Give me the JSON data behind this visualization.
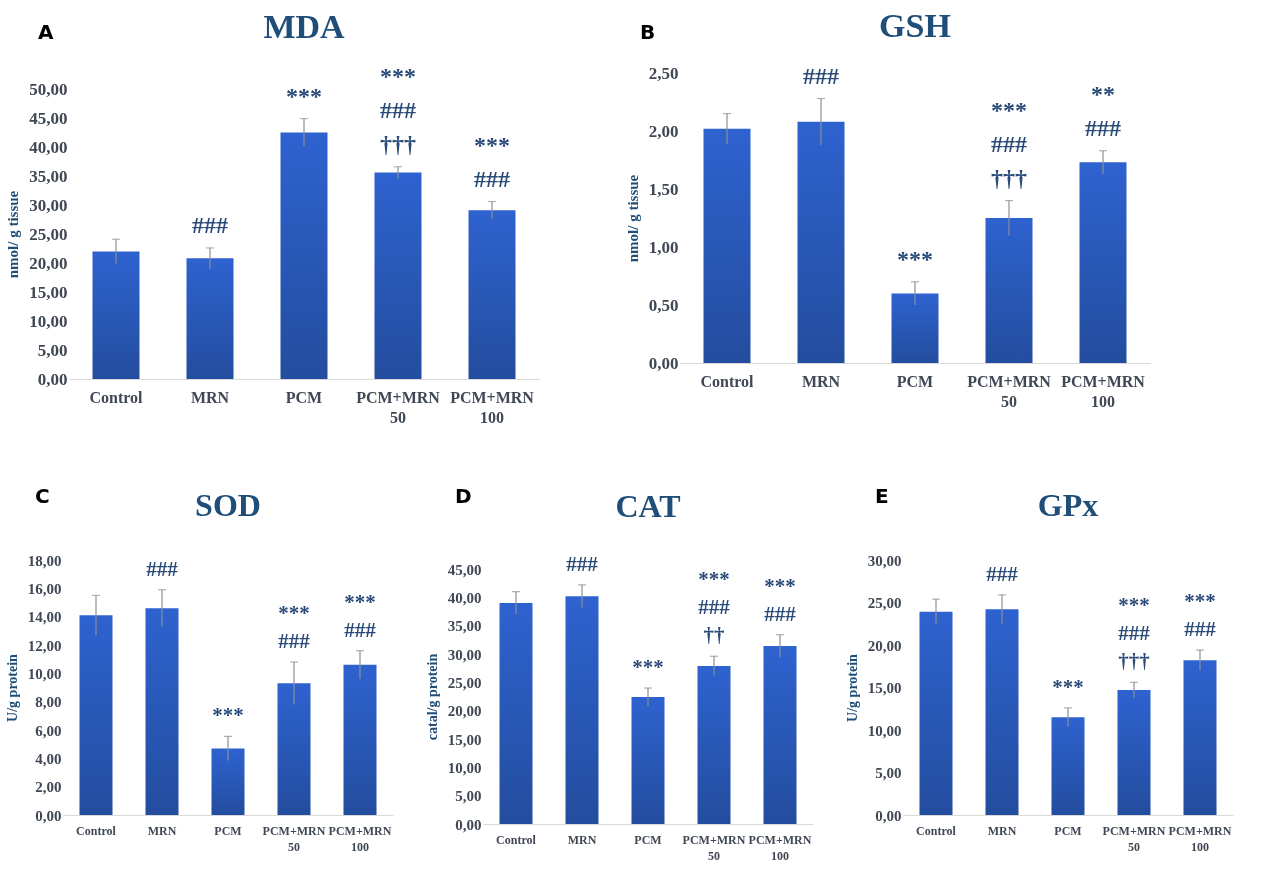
{
  "chart_data": [
    {
      "type": "bar",
      "title": "MDA",
      "ylabel": "nmol/ g tissue",
      "categories": [
        "Control",
        "MRN",
        "PCM",
        "PCM+MRN 50",
        "PCM+MRN 100"
      ],
      "values": [
        22.0,
        20.8,
        42.5,
        35.6,
        29.1
      ],
      "errors": [
        2.1,
        1.8,
        2.4,
        1.0,
        1.5
      ],
      "color": "#2e62cf",
      "ylim": [
        0,
        50
      ],
      "yticks": [
        {
          "value": 0,
          "label": "0,00"
        },
        {
          "value": 5,
          "label": "5,00"
        },
        {
          "value": 10,
          "label": "10,00"
        },
        {
          "value": 15,
          "label": "15,00"
        },
        {
          "value": 20,
          "label": "20,00"
        },
        {
          "value": 25,
          "label": "25,00"
        },
        {
          "value": 30,
          "label": "30,00"
        },
        {
          "value": 35,
          "label": "35,00"
        },
        {
          "value": 40,
          "label": "40,00"
        },
        {
          "value": 45,
          "label": "45,00"
        },
        {
          "value": 50,
          "label": "50,00"
        }
      ],
      "grid": false,
      "annotations": [
        "A",
        {
          "text": "###",
          "x": "MRN",
          "y": 20.8
        },
        {
          "text": "***",
          "x": "PCM",
          "y": 42.5
        },
        {
          "text": "***\n###\n†††",
          "x": "PCM+MRN 50",
          "y": 35.6
        },
        {
          "text": "***\n###",
          "x": "PCM+MRN 100",
          "y": 29.1
        }
      ]
    },
    {
      "type": "bar",
      "title": "GSH",
      "ylabel": "nmol/ g tissue",
      "categories": [
        "Control",
        "MRN",
        "PCM",
        "PCM+MRN 50",
        "PCM+MRN 100"
      ],
      "values": [
        2.02,
        2.08,
        0.6,
        1.25,
        1.73
      ],
      "errors": [
        0.13,
        0.2,
        0.1,
        0.15,
        0.1
      ],
      "color": "#2e62cf",
      "ylim": [
        0,
        2.5
      ],
      "yticks": [
        {
          "value": 0,
          "label": "0,00"
        },
        {
          "value": 0.5,
          "label": "0,50"
        },
        {
          "value": 1,
          "label": "1,00"
        },
        {
          "value": 1.5,
          "label": "1,50"
        },
        {
          "value": 2,
          "label": "2,00"
        },
        {
          "value": 2.5,
          "label": "2,50"
        }
      ],
      "grid": false,
      "annotations": [
        "B",
        {
          "text": "###",
          "x": "MRN",
          "y": 2.08
        },
        {
          "text": "***",
          "x": "PCM",
          "y": 0.6
        },
        {
          "text": "***\n###\n†††",
          "x": "PCM+MRN 50",
          "y": 1.25
        },
        {
          "text": "**\n###",
          "x": "PCM+MRN 100",
          "y": 1.73
        }
      ]
    },
    {
      "type": "bar",
      "title": "SOD",
      "ylabel": "U/g protein",
      "categories": [
        "Control",
        "MRN",
        "PCM",
        "PCM+MRN 50",
        "PCM+MRN 100"
      ],
      "values": [
        14.1,
        14.6,
        4.7,
        9.3,
        10.6
      ],
      "errors": [
        1.4,
        1.3,
        0.85,
        1.5,
        1.0
      ],
      "color": "#2e62cf",
      "ylim": [
        0,
        18
      ],
      "yticks": [
        {
          "value": 0,
          "label": "0,00"
        },
        {
          "value": 2,
          "label": "2,00"
        },
        {
          "value": 4,
          "label": "4,00"
        },
        {
          "value": 6,
          "label": "6,00"
        },
        {
          "value": 8,
          "label": "8,00"
        },
        {
          "value": 10,
          "label": "10,00"
        },
        {
          "value": 12,
          "label": "12,00"
        },
        {
          "value": 14,
          "label": "14,00"
        },
        {
          "value": 16,
          "label": "16,00"
        },
        {
          "value": 18,
          "label": "18,00"
        }
      ],
      "grid": false,
      "annotations": [
        "C",
        {
          "text": "###",
          "x": "MRN",
          "y": 14.6
        },
        {
          "text": "***",
          "x": "PCM",
          "y": 4.7
        },
        {
          "text": "***\n###",
          "x": "PCM+MRN 50",
          "y": 9.3
        },
        {
          "text": "***\n###",
          "x": "PCM+MRN 100",
          "y": 10.6
        }
      ]
    },
    {
      "type": "bar",
      "title": "CAT",
      "ylabel": "catal/g protein",
      "categories": [
        "Control",
        "MRN",
        "PCM",
        "PCM+MRN 50",
        "PCM+MRN 100"
      ],
      "values": [
        39.0,
        40.2,
        22.4,
        27.9,
        31.4
      ],
      "errors": [
        2.0,
        2.0,
        1.6,
        1.7,
        2.0
      ],
      "color": "#2e62cf",
      "ylim": [
        0,
        45
      ],
      "yticks": [
        {
          "value": 0,
          "label": "0,00"
        },
        {
          "value": 5,
          "label": "5,00"
        },
        {
          "value": 10,
          "label": "10,00"
        },
        {
          "value": 15,
          "label": "15,00"
        },
        {
          "value": 20,
          "label": "20,00"
        },
        {
          "value": 25,
          "label": "25,00"
        },
        {
          "value": 30,
          "label": "30,00"
        },
        {
          "value": 35,
          "label": "35,00"
        },
        {
          "value": 40,
          "label": "40,00"
        },
        {
          "value": 45,
          "label": "45,00"
        }
      ],
      "grid": false,
      "annotations": [
        "D",
        {
          "text": "###",
          "x": "MRN",
          "y": 40.2
        },
        {
          "text": "***",
          "x": "PCM",
          "y": 22.4
        },
        {
          "text": "***\n###\n††",
          "x": "PCM+MRN 50",
          "y": 27.9
        },
        {
          "text": "***\n###",
          "x": "PCM+MRN 100",
          "y": 31.4
        }
      ]
    },
    {
      "type": "bar",
      "title": "GPx",
      "ylabel": "U/g protein",
      "categories": [
        "Control",
        "MRN",
        "PCM",
        "PCM+MRN 50",
        "PCM+MRN 100"
      ],
      "values": [
        23.9,
        24.2,
        11.5,
        14.7,
        18.2
      ],
      "errors": [
        1.5,
        1.7,
        1.1,
        0.9,
        1.2
      ],
      "color": "#2e62cf",
      "ylim": [
        0,
        30
      ],
      "yticks": [
        {
          "value": 0,
          "label": "0,00"
        },
        {
          "value": 5,
          "label": "5,00"
        },
        {
          "value": 10,
          "label": "10,00"
        },
        {
          "value": 15,
          "label": "15,00"
        },
        {
          "value": 20,
          "label": "20,00"
        },
        {
          "value": 25,
          "label": "25,00"
        },
        {
          "value": 30,
          "label": "30,00"
        }
      ],
      "grid": false,
      "annotations": [
        "E",
        {
          "text": "###",
          "x": "MRN",
          "y": 24.2
        },
        {
          "text": "***",
          "x": "PCM",
          "y": 11.5
        },
        {
          "text": "***\n###\n†††",
          "x": "PCM+MRN 50",
          "y": 14.7
        },
        {
          "text": "***\n###",
          "x": "PCM+MRN 100",
          "y": 18.2
        }
      ]
    }
  ]
}
